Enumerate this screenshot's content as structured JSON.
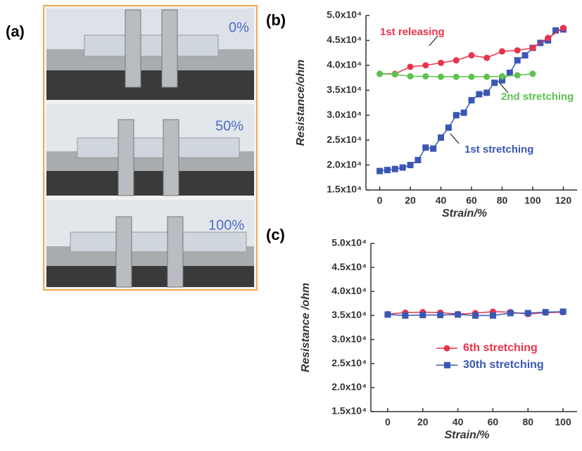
{
  "panels": {
    "a": "(a)",
    "b": "(b)",
    "c": "(c)"
  },
  "photos": [
    {
      "label": "0%"
    },
    {
      "label": "50%"
    },
    {
      "label": "100%"
    }
  ],
  "chart_data": [
    {
      "type": "line",
      "ylabel": "Resistance/ohm",
      "xlabel": "Strain/%",
      "xlim": [
        -9,
        129
      ],
      "xticks": [
        0,
        20,
        40,
        60,
        80,
        100,
        120
      ],
      "ylim": [
        15000,
        50000
      ],
      "yticks": [
        {
          "value": 15000,
          "label": "1.5x10⁴"
        },
        {
          "value": 20000,
          "label": "2.0x10⁴"
        },
        {
          "value": 25000,
          "label": "2.5x10⁴"
        },
        {
          "value": 30000,
          "label": "3.0x10⁴"
        },
        {
          "value": 35000,
          "label": "3.5x10⁴"
        },
        {
          "value": 40000,
          "label": "4.0x10⁴"
        },
        {
          "value": 45000,
          "label": "4.5x10⁴"
        },
        {
          "value": 50000,
          "label": "5.0x10⁴"
        }
      ],
      "series": [
        {
          "name": "1st stretching",
          "color": "#3a57b5",
          "marker": "square",
          "x": [
            0,
            5,
            10,
            15,
            20,
            25,
            30,
            35,
            40,
            45,
            50,
            55,
            60,
            65,
            70,
            75,
            80,
            85,
            90,
            95,
            100,
            105,
            110,
            115,
            120
          ],
          "values": [
            18800,
            19000,
            19200,
            19500,
            20000,
            21000,
            23500,
            23300,
            25500,
            27500,
            30000,
            30500,
            33000,
            34200,
            34500,
            36500,
            37000,
            38500,
            41000,
            42000,
            43500,
            44500,
            45000,
            47000,
            47200
          ]
        },
        {
          "name": "1st releasing",
          "color": "#e8334a",
          "marker": "circle",
          "x": [
            0,
            10,
            20,
            30,
            40,
            50,
            60,
            70,
            80,
            90,
            100,
            110,
            120
          ],
          "values": [
            38300,
            38300,
            39700,
            40000,
            40500,
            41000,
            42000,
            41500,
            42800,
            43000,
            43500,
            45500,
            47500
          ]
        },
        {
          "name": "2nd stretching",
          "color": "#5cc24e",
          "marker": "circle",
          "x": [
            0,
            10,
            20,
            30,
            40,
            50,
            60,
            70,
            80,
            90,
            100
          ],
          "values": [
            38300,
            38200,
            37800,
            37800,
            37700,
            37700,
            37700,
            37700,
            37800,
            38000,
            38300
          ]
        }
      ]
    },
    {
      "type": "line",
      "ylabel": "Resistance /ohm",
      "xlabel": "Strain/%",
      "legend": "lower right",
      "xlim": [
        -9.6,
        108
      ],
      "xticks": [
        0,
        20,
        40,
        60,
        80,
        100
      ],
      "ylim": [
        15000,
        50000
      ],
      "yticks": [
        {
          "value": 15000,
          "label": "1.5x10⁴"
        },
        {
          "value": 20000,
          "label": "2.0x10⁴"
        },
        {
          "value": 25000,
          "label": "2.5x10⁴"
        },
        {
          "value": 30000,
          "label": "3.0x10⁴"
        },
        {
          "value": 35000,
          "label": "3.5x10⁴"
        },
        {
          "value": 40000,
          "label": "4.0x10⁴"
        },
        {
          "value": 45000,
          "label": "4.5x10⁴"
        },
        {
          "value": 50000,
          "label": "5.0x10⁴"
        }
      ],
      "series": [
        {
          "name": "6th stretching",
          "color": "#e8334a",
          "marker": "circle",
          "x": [
            0,
            10,
            20,
            30,
            40,
            50,
            60,
            70,
            80,
            90,
            100
          ],
          "values": [
            35300,
            35600,
            35700,
            35600,
            35300,
            35500,
            35800,
            35700,
            35300,
            35600,
            35700
          ]
        },
        {
          "name": "30th stretching",
          "color": "#3a57b5",
          "marker": "square",
          "x": [
            0,
            10,
            20,
            30,
            40,
            50,
            60,
            70,
            80,
            90,
            100
          ],
          "values": [
            35200,
            35000,
            35100,
            35100,
            35200,
            35000,
            35000,
            35500,
            35500,
            35700,
            35800
          ]
        }
      ]
    }
  ]
}
